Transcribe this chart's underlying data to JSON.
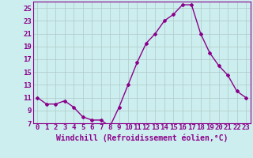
{
  "x": [
    0,
    1,
    2,
    3,
    4,
    5,
    6,
    7,
    8,
    9,
    10,
    11,
    12,
    13,
    14,
    15,
    16,
    17,
    18,
    19,
    20,
    21,
    22,
    23
  ],
  "y": [
    11,
    10,
    10,
    10.5,
    9.5,
    8,
    7.5,
    7.5,
    6.5,
    9.5,
    13,
    16.5,
    19.5,
    21,
    23,
    24,
    25.5,
    25.5,
    21,
    18,
    16,
    14.5,
    12,
    11
  ],
  "line_color": "#8B008B",
  "marker": "D",
  "marker_size": 2,
  "bg_color": "#cceeee",
  "grid_color": "#b0c8c8",
  "xlabel": "Windchill (Refroidissement éolien,°C)",
  "ylim": [
    7,
    26
  ],
  "xlim": [
    -0.5,
    23.5
  ],
  "yticks": [
    7,
    9,
    11,
    13,
    15,
    17,
    19,
    21,
    23,
    25
  ],
  "xticks": [
    0,
    1,
    2,
    3,
    4,
    5,
    6,
    7,
    8,
    9,
    10,
    11,
    12,
    13,
    14,
    15,
    16,
    17,
    18,
    19,
    20,
    21,
    22,
    23
  ],
  "font_color": "#8B008B",
  "tick_fontsize": 6.5,
  "xlabel_fontsize": 7,
  "linewidth": 1.0
}
